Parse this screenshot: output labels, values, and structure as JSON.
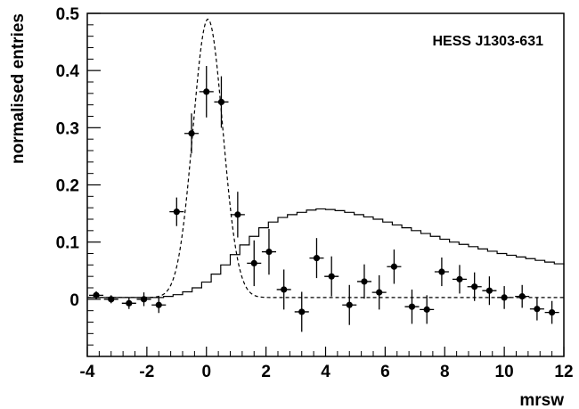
{
  "chart_data": {
    "type": "scatter",
    "xlabel": "mrsw",
    "ylabel": "normalised entries",
    "annotation": "HESS J1303-631",
    "xlim": [
      -4,
      12
    ],
    "ylim": [
      -0.1,
      0.5
    ],
    "x_ticks": [
      -4,
      -2,
      0,
      2,
      4,
      6,
      8,
      10,
      12
    ],
    "x_tick_labels": [
      "-4",
      "-2",
      "0",
      "2",
      "4",
      "6",
      "8",
      "10",
      "12"
    ],
    "y_ticks": [
      0,
      0.1,
      0.2,
      0.3,
      0.4,
      0.5
    ],
    "y_tick_labels": [
      "0",
      "0.1",
      "0.2",
      "0.3",
      "0.4",
      "0.5"
    ],
    "series": [
      {
        "kind": "points_with_errorbars",
        "bin_half_width": 0.24,
        "x": [
          -3.7,
          -3.2,
          -2.6,
          -2.1,
          -1.6,
          -1.0,
          -0.5,
          0.0,
          0.5,
          1.05,
          1.6,
          2.1,
          2.6,
          3.2,
          3.7,
          4.2,
          4.8,
          5.3,
          5.8,
          6.3,
          6.9,
          7.4,
          7.9,
          8.5,
          9.0,
          9.5,
          10.0,
          10.6,
          11.1,
          11.6
        ],
        "y": [
          0.007,
          0.0,
          -0.007,
          0.0,
          -0.01,
          0.153,
          0.29,
          0.363,
          0.345,
          0.148,
          0.063,
          0.083,
          0.017,
          -0.022,
          0.072,
          0.04,
          -0.01,
          0.031,
          0.012,
          0.057,
          -0.013,
          -0.018,
          0.048,
          0.035,
          0.022,
          0.015,
          0.003,
          0.005,
          -0.017,
          -0.023
        ],
        "yerr": [
          0.007,
          0.007,
          0.01,
          0.012,
          0.014,
          0.025,
          0.035,
          0.045,
          0.045,
          0.04,
          0.04,
          0.04,
          0.035,
          0.035,
          0.035,
          0.035,
          0.035,
          0.03,
          0.03,
          0.03,
          0.03,
          0.025,
          0.025,
          0.025,
          0.025,
          0.025,
          0.02,
          0.02,
          0.02,
          0.02
        ]
      },
      {
        "kind": "step_histogram",
        "bin_width": 0.32,
        "x_start": -4,
        "values": [
          0.003,
          0.003,
          0.003,
          0.003,
          0.003,
          0.003,
          0.003,
          0.003,
          0.005,
          0.008,
          0.013,
          0.02,
          0.03,
          0.044,
          0.06,
          0.078,
          0.095,
          0.11,
          0.125,
          0.135,
          0.143,
          0.148,
          0.152,
          0.156,
          0.158,
          0.157,
          0.155,
          0.152,
          0.148,
          0.144,
          0.14,
          0.135,
          0.13,
          0.125,
          0.12,
          0.115,
          0.11,
          0.105,
          0.1,
          0.096,
          0.092,
          0.088,
          0.084,
          0.08,
          0.077,
          0.074,
          0.071,
          0.068,
          0.065,
          0.062,
          0.06
        ]
      },
      {
        "kind": "dashed_curve",
        "description_function": "gaussian_plus_constant",
        "amplitude": 0.487,
        "mean": 0.05,
        "sigma": 0.5,
        "baseline": 0.003,
        "x_range": [
          -4,
          12
        ]
      }
    ]
  }
}
